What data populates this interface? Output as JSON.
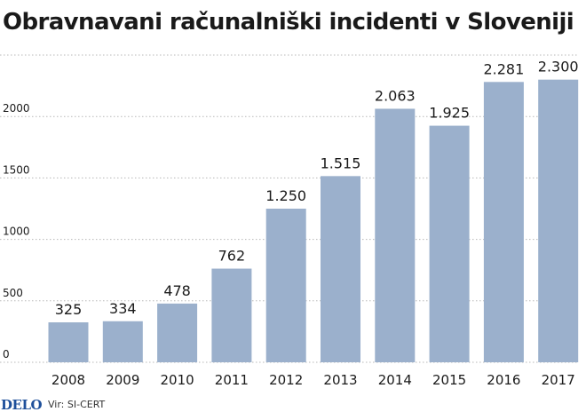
{
  "title": "Obravnavani računalniški incidenti v Sloveniji",
  "logo": "DELO",
  "source": "Vir: SI-CERT",
  "colors": {
    "bar": "#9bb0cc",
    "grid": "#b8b8b8",
    "text": "#1a1a1a"
  },
  "chart_data": {
    "type": "bar",
    "categories": [
      "2008",
      "2009",
      "2010",
      "2011",
      "2012",
      "2013",
      "2014",
      "2015",
      "2016",
      "2017"
    ],
    "values": [
      325,
      334,
      478,
      762,
      1250,
      1515,
      2063,
      1925,
      2281,
      2300
    ],
    "value_labels": [
      "325",
      "334",
      "478",
      "762",
      "1.250",
      "1.515",
      "2.063",
      "1.925",
      "2.281",
      "2.300"
    ],
    "yticks": [
      "0",
      "500",
      "1000",
      "1500",
      "2000"
    ],
    "ylim": [
      0,
      2500
    ],
    "grid": true
  }
}
